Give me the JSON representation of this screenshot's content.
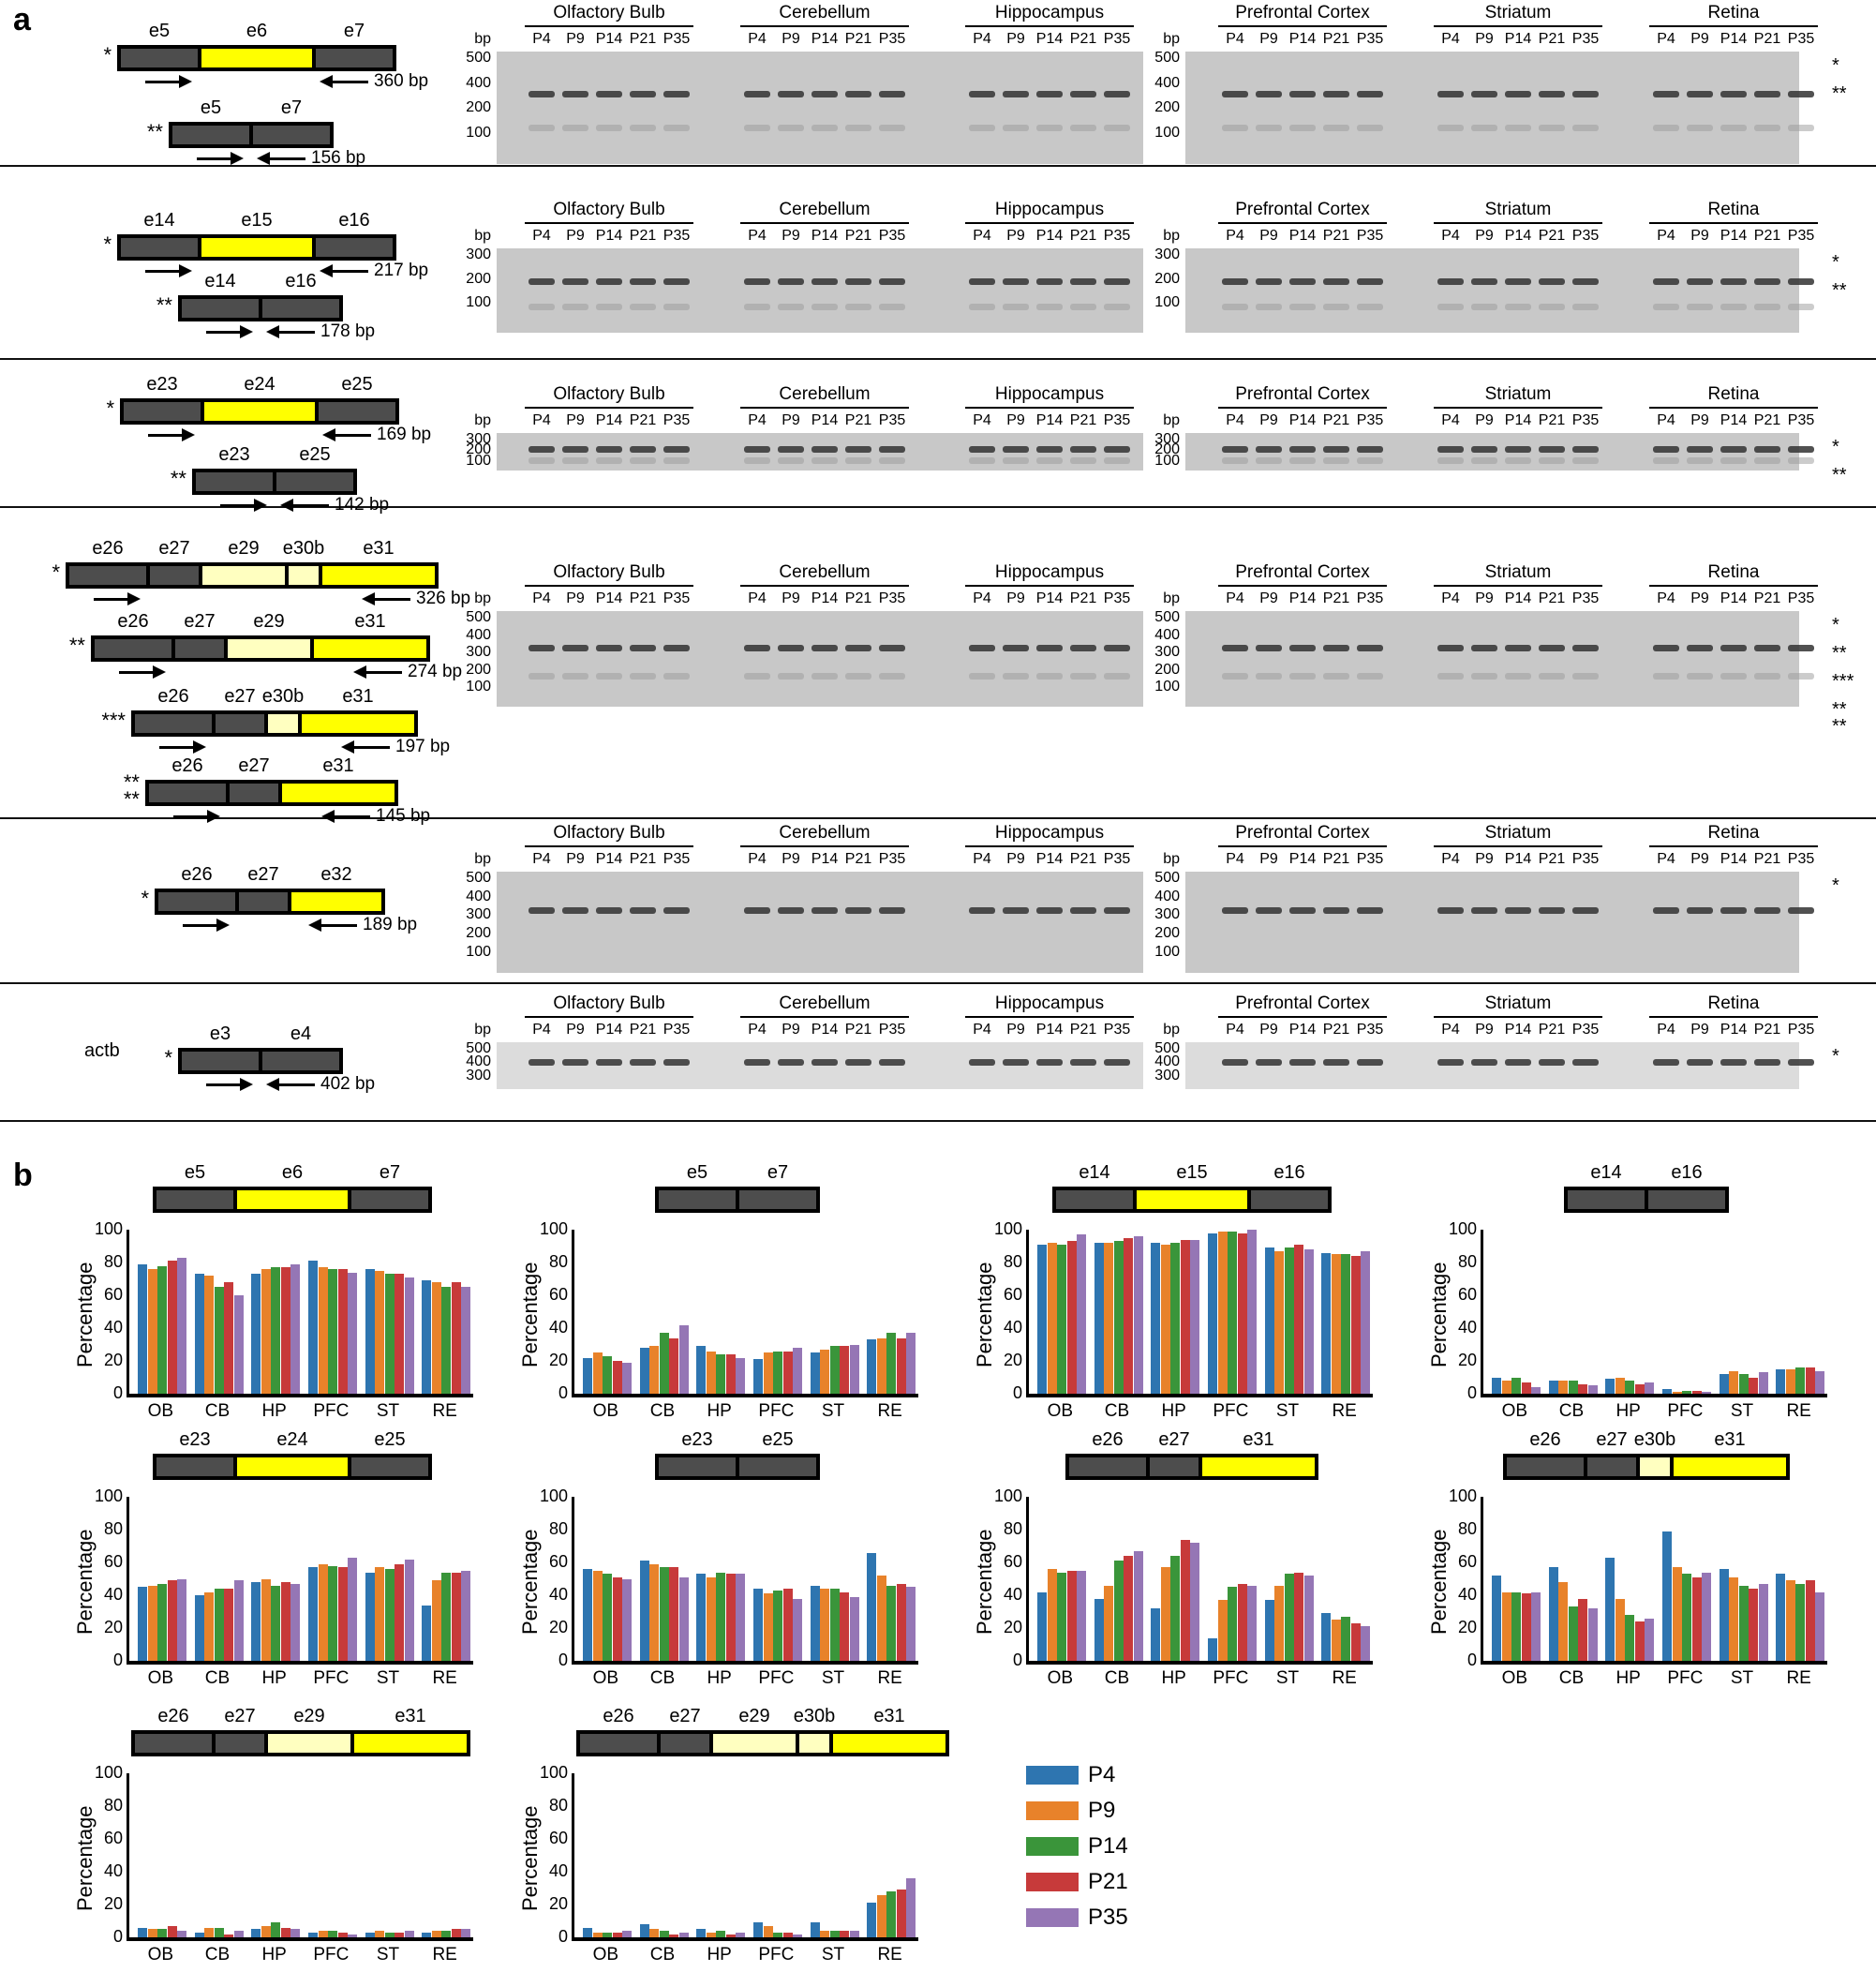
{
  "panels": {
    "a": "a",
    "b": "b"
  },
  "legend": [
    {
      "label": "P4",
      "color": "#2e75b0"
    },
    {
      "label": "P9",
      "color": "#e8822a"
    },
    {
      "label": "P14",
      "color": "#3a953a"
    },
    {
      "label": "P21",
      "color": "#c73a3a"
    },
    {
      "label": "P35",
      "color": "#9576b5"
    }
  ],
  "gel_common": {
    "bp_label": "bp",
    "lanes": [
      "P4",
      "P9",
      "P14",
      "P21",
      "P35"
    ],
    "tissues_left": [
      "Olfactory Bulb",
      "Cerebellum",
      "Hippocampus"
    ],
    "tissues_right": [
      "Prefrontal Cortex",
      "Striatum",
      "Retina"
    ]
  },
  "rows": [
    {
      "isoforms": [
        {
          "star": "*",
          "exons": [
            [
              "e5",
              "dark"
            ],
            [
              "e6",
              "yellow"
            ],
            [
              "e7",
              "dark"
            ]
          ],
          "size": "360 bp"
        },
        {
          "star": "**",
          "exons": [
            [
              "e5",
              "dark"
            ],
            [
              "e7",
              "dark"
            ]
          ],
          "size": "156 bp"
        }
      ],
      "ladder": [
        "500",
        "400",
        "200",
        "100"
      ],
      "gel_stars": [
        "*",
        "**"
      ]
    },
    {
      "isoforms": [
        {
          "star": "*",
          "exons": [
            [
              "e14",
              "dark"
            ],
            [
              "e15",
              "yellow"
            ],
            [
              "e16",
              "dark"
            ]
          ],
          "size": "217 bp"
        },
        {
          "star": "**",
          "exons": [
            [
              "e14",
              "dark"
            ],
            [
              "e16",
              "dark"
            ]
          ],
          "size": "178 bp"
        }
      ],
      "ladder": [
        "300",
        "200",
        "100"
      ],
      "gel_stars": [
        "*",
        "**"
      ]
    },
    {
      "isoforms": [
        {
          "star": "*",
          "exons": [
            [
              "e23",
              "dark"
            ],
            [
              "e24",
              "yellow"
            ],
            [
              "e25",
              "dark"
            ]
          ],
          "size": "169 bp"
        },
        {
          "star": "**",
          "exons": [
            [
              "e23",
              "dark"
            ],
            [
              "e25",
              "dark"
            ]
          ],
          "size": "142 bp"
        }
      ],
      "ladder": [
        "300",
        "200",
        "100"
      ],
      "gel_stars": [
        "*",
        "**"
      ]
    },
    {
      "isoforms": [
        {
          "star": "*",
          "exons": [
            [
              "e26",
              "dark"
            ],
            [
              "e27",
              "dark"
            ],
            [
              "e29",
              "pale"
            ],
            [
              "e30b",
              "pale"
            ],
            [
              "e31",
              "yellow"
            ]
          ],
          "size": "326 bp"
        },
        {
          "star": "**",
          "exons": [
            [
              "e26",
              "dark"
            ],
            [
              "e27",
              "dark"
            ],
            [
              "e29",
              "pale"
            ],
            [
              "e31",
              "yellow"
            ]
          ],
          "size": "274 bp"
        },
        {
          "star": "***",
          "exons": [
            [
              "e26",
              "dark"
            ],
            [
              "e27",
              "dark"
            ],
            [
              "e30b",
              "pale"
            ],
            [
              "e31",
              "yellow"
            ]
          ],
          "size": "197 bp"
        },
        {
          "star": "**\n**",
          "exons": [
            [
              "e26",
              "dark"
            ],
            [
              "e27",
              "dark"
            ],
            [
              "e31",
              "yellow"
            ]
          ],
          "size": "145 bp"
        }
      ],
      "ladder": [
        "500",
        "400",
        "300",
        "200",
        "100"
      ],
      "gel_stars": [
        "*",
        "**",
        "***",
        "**\n**"
      ]
    },
    {
      "isoforms": [
        {
          "star": "*",
          "exons": [
            [
              "e26",
              "dark"
            ],
            [
              "e27",
              "dark"
            ],
            [
              "e32",
              "yellow"
            ]
          ],
          "size": "189 bp"
        }
      ],
      "ladder": [
        "500",
        "400",
        "300",
        "200",
        "100"
      ],
      "gel_stars": [
        "*"
      ]
    },
    {
      "gene": "actb",
      "isoforms": [
        {
          "star": "*",
          "exons": [
            [
              "e3",
              "dark"
            ],
            [
              "e4",
              "dark"
            ]
          ],
          "size": "402 bp"
        }
      ],
      "ladder": [
        "500",
        "400",
        "300"
      ],
      "gel_stars": [
        "*"
      ]
    }
  ],
  "chart_data": [
    {
      "type": "bar",
      "title": "e5-e6-e7",
      "exons": [
        [
          "e5",
          "dark"
        ],
        [
          "e6",
          "yellow"
        ],
        [
          "e7",
          "dark"
        ]
      ],
      "ylabel": "Percentage",
      "ylim": [
        0,
        100
      ],
      "categories": [
        "OB",
        "CB",
        "HP",
        "PFC",
        "ST",
        "RE"
      ],
      "series": [
        {
          "name": "P4",
          "values": [
            79,
            73,
            73,
            81,
            76,
            69
          ]
        },
        {
          "name": "P9",
          "values": [
            76,
            72,
            76,
            77,
            75,
            68
          ]
        },
        {
          "name": "P14",
          "values": [
            78,
            65,
            77,
            76,
            73,
            65
          ]
        },
        {
          "name": "P21",
          "values": [
            81,
            68,
            77,
            76,
            73,
            68
          ]
        },
        {
          "name": "P35",
          "values": [
            83,
            60,
            79,
            74,
            71,
            65
          ]
        }
      ]
    },
    {
      "type": "bar",
      "title": "e5-e7",
      "exons": [
        [
          "e5",
          "dark"
        ],
        [
          "e7",
          "dark"
        ]
      ],
      "ylabel": "Percentage",
      "ylim": [
        0,
        100
      ],
      "categories": [
        "OB",
        "CB",
        "HP",
        "PFC",
        "ST",
        "RE"
      ],
      "series": [
        {
          "name": "P4",
          "values": [
            22,
            28,
            29,
            21,
            25,
            33
          ]
        },
        {
          "name": "P9",
          "values": [
            25,
            29,
            26,
            25,
            27,
            34
          ]
        },
        {
          "name": "P14",
          "values": [
            23,
            37,
            24,
            26,
            29,
            37
          ]
        },
        {
          "name": "P21",
          "values": [
            20,
            34,
            24,
            26,
            29,
            34
          ]
        },
        {
          "name": "P35",
          "values": [
            19,
            42,
            22,
            28,
            30,
            37
          ]
        }
      ]
    },
    {
      "type": "bar",
      "title": "e14-e15-e16",
      "exons": [
        [
          "e14",
          "dark"
        ],
        [
          "e15",
          "yellow"
        ],
        [
          "e16",
          "dark"
        ]
      ],
      "ylabel": "Percentage",
      "ylim": [
        0,
        100
      ],
      "categories": [
        "OB",
        "CB",
        "HP",
        "PFC",
        "ST",
        "RE"
      ],
      "series": [
        {
          "name": "P4",
          "values": [
            91,
            92,
            92,
            98,
            89,
            86
          ]
        },
        {
          "name": "P9",
          "values": [
            92,
            92,
            91,
            99,
            87,
            85
          ]
        },
        {
          "name": "P14",
          "values": [
            91,
            93,
            92,
            99,
            89,
            85
          ]
        },
        {
          "name": "P21",
          "values": [
            93,
            95,
            94,
            98,
            91,
            84
          ]
        },
        {
          "name": "P35",
          "values": [
            97,
            96,
            94,
            100,
            88,
            87
          ]
        }
      ]
    },
    {
      "type": "bar",
      "title": "e14-e16",
      "exons": [
        [
          "e14",
          "dark"
        ],
        [
          "e16",
          "dark"
        ]
      ],
      "ylabel": "Percentage",
      "ylim": [
        0,
        100
      ],
      "categories": [
        "OB",
        "CB",
        "HP",
        "PFC",
        "ST",
        "RE"
      ],
      "series": [
        {
          "name": "P4",
          "values": [
            10,
            8,
            9,
            3,
            12,
            15
          ]
        },
        {
          "name": "P9",
          "values": [
            8,
            8,
            10,
            1,
            14,
            15
          ]
        },
        {
          "name": "P14",
          "values": [
            10,
            8,
            8,
            2,
            12,
            16
          ]
        },
        {
          "name": "P21",
          "values": [
            7,
            6,
            6,
            2,
            10,
            16
          ]
        },
        {
          "name": "P35",
          "values": [
            4,
            5,
            7,
            1,
            13,
            14
          ]
        }
      ]
    },
    {
      "type": "bar",
      "title": "e23-e24-e25",
      "exons": [
        [
          "e23",
          "dark"
        ],
        [
          "e24",
          "yellow"
        ],
        [
          "e25",
          "dark"
        ]
      ],
      "ylabel": "Percentage",
      "ylim": [
        0,
        100
      ],
      "categories": [
        "OB",
        "CB",
        "HP",
        "PFC",
        "ST",
        "RE"
      ],
      "series": [
        {
          "name": "P4",
          "values": [
            45,
            40,
            48,
            57,
            54,
            34
          ]
        },
        {
          "name": "P9",
          "values": [
            46,
            42,
            50,
            59,
            57,
            49
          ]
        },
        {
          "name": "P14",
          "values": [
            47,
            44,
            46,
            58,
            56,
            54
          ]
        },
        {
          "name": "P21",
          "values": [
            49,
            44,
            48,
            57,
            59,
            54
          ]
        },
        {
          "name": "P35",
          "values": [
            50,
            49,
            47,
            63,
            62,
            55
          ]
        }
      ]
    },
    {
      "type": "bar",
      "title": "e23-e25",
      "exons": [
        [
          "e23",
          "dark"
        ],
        [
          "e25",
          "dark"
        ]
      ],
      "ylabel": "Percentage",
      "ylim": [
        0,
        100
      ],
      "categories": [
        "OB",
        "CB",
        "HP",
        "PFC",
        "ST",
        "RE"
      ],
      "series": [
        {
          "name": "P4",
          "values": [
            56,
            61,
            53,
            44,
            46,
            66
          ]
        },
        {
          "name": "P9",
          "values": [
            55,
            59,
            51,
            41,
            44,
            52
          ]
        },
        {
          "name": "P14",
          "values": [
            53,
            57,
            54,
            43,
            44,
            46
          ]
        },
        {
          "name": "P21",
          "values": [
            51,
            57,
            53,
            44,
            42,
            47
          ]
        },
        {
          "name": "P35",
          "values": [
            50,
            51,
            53,
            38,
            39,
            45
          ]
        }
      ]
    },
    {
      "type": "bar",
      "title": "e26-e27-e31",
      "exons": [
        [
          "e26",
          "dark"
        ],
        [
          "e27",
          "dark"
        ],
        [
          "e31",
          "yellow"
        ]
      ],
      "ylabel": "Percentage",
      "ylim": [
        0,
        100
      ],
      "categories": [
        "OB",
        "CB",
        "HP",
        "PFC",
        "ST",
        "RE"
      ],
      "series": [
        {
          "name": "P4",
          "values": [
            42,
            38,
            32,
            14,
            37,
            29
          ]
        },
        {
          "name": "P9",
          "values": [
            56,
            46,
            57,
            37,
            46,
            25
          ]
        },
        {
          "name": "P14",
          "values": [
            54,
            61,
            64,
            45,
            53,
            27
          ]
        },
        {
          "name": "P21",
          "values": [
            55,
            64,
            74,
            47,
            54,
            23
          ]
        },
        {
          "name": "P35",
          "values": [
            55,
            67,
            72,
            46,
            52,
            21
          ]
        }
      ]
    },
    {
      "type": "bar",
      "title": "e26-e27-e30b-e31",
      "exons": [
        [
          "e26",
          "dark"
        ],
        [
          "e27",
          "dark"
        ],
        [
          "e30b",
          "pale"
        ],
        [
          "e31",
          "yellow"
        ]
      ],
      "ylabel": "Percentage",
      "ylim": [
        0,
        100
      ],
      "categories": [
        "OB",
        "CB",
        "HP",
        "PFC",
        "ST",
        "RE"
      ],
      "series": [
        {
          "name": "P4",
          "values": [
            52,
            57,
            63,
            79,
            56,
            53
          ]
        },
        {
          "name": "P9",
          "values": [
            42,
            48,
            38,
            57,
            51,
            49
          ]
        },
        {
          "name": "P14",
          "values": [
            42,
            33,
            28,
            53,
            46,
            47
          ]
        },
        {
          "name": "P21",
          "values": [
            41,
            38,
            24,
            51,
            44,
            49
          ]
        },
        {
          "name": "P35",
          "values": [
            42,
            32,
            26,
            54,
            47,
            42
          ]
        }
      ]
    },
    {
      "type": "bar",
      "title": "e26-e27-e29-e31",
      "exons": [
        [
          "e26",
          "dark"
        ],
        [
          "e27",
          "dark"
        ],
        [
          "e29",
          "pale"
        ],
        [
          "e31",
          "yellow"
        ]
      ],
      "ylabel": "Percentage",
      "ylim": [
        0,
        100
      ],
      "categories": [
        "OB",
        "CB",
        "HP",
        "PFC",
        "ST",
        "RE"
      ],
      "series": [
        {
          "name": "P4",
          "values": [
            6,
            3,
            5,
            3,
            3,
            3
          ]
        },
        {
          "name": "P9",
          "values": [
            5,
            6,
            7,
            4,
            4,
            4
          ]
        },
        {
          "name": "P14",
          "values": [
            5,
            6,
            9,
            4,
            3,
            4
          ]
        },
        {
          "name": "P21",
          "values": [
            7,
            2,
            6,
            3,
            3,
            5
          ]
        },
        {
          "name": "P35",
          "values": [
            4,
            4,
            5,
            2,
            4,
            5
          ]
        }
      ]
    },
    {
      "type": "bar",
      "title": "e26-e27-e29-e30b-e31",
      "exons": [
        [
          "e26",
          "dark"
        ],
        [
          "e27",
          "dark"
        ],
        [
          "e29",
          "pale"
        ],
        [
          "e30b",
          "pale"
        ],
        [
          "e31",
          "yellow"
        ]
      ],
      "ylabel": "Percentage",
      "ylim": [
        0,
        100
      ],
      "categories": [
        "OB",
        "CB",
        "HP",
        "PFC",
        "ST",
        "RE"
      ],
      "series": [
        {
          "name": "P4",
          "values": [
            6,
            8,
            5,
            9,
            9,
            21
          ]
        },
        {
          "name": "P9",
          "values": [
            3,
            5,
            3,
            7,
            4,
            26
          ]
        },
        {
          "name": "P14",
          "values": [
            3,
            4,
            4,
            3,
            4,
            28
          ]
        },
        {
          "name": "P21",
          "values": [
            3,
            2,
            2,
            3,
            4,
            29
          ]
        },
        {
          "name": "P35",
          "values": [
            4,
            3,
            3,
            2,
            4,
            36
          ]
        }
      ]
    }
  ]
}
